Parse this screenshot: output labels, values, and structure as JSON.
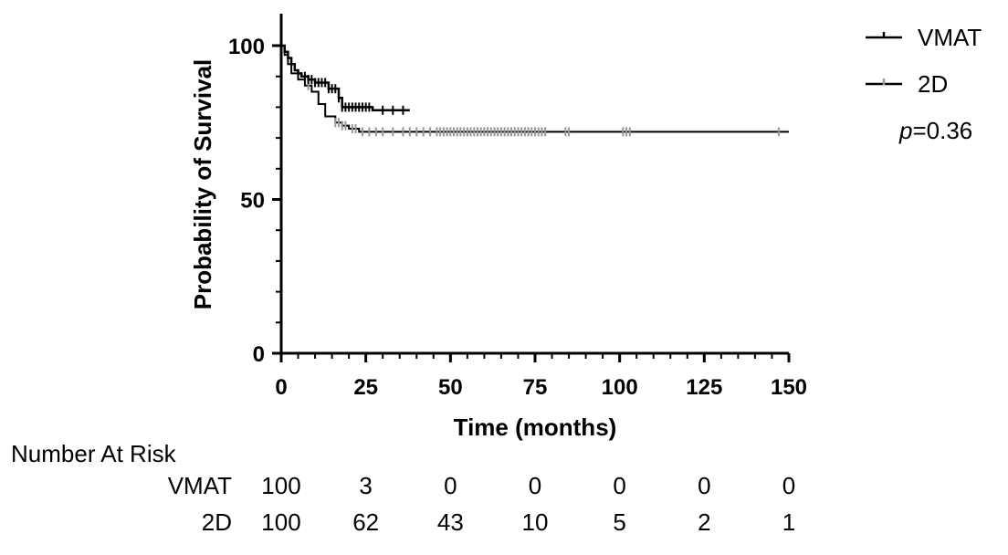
{
  "chart_data": {
    "type": "line",
    "subtype": "kaplan-meier",
    "xlabel": "Time (months)",
    "ylabel": "Probability of Survival",
    "xlim": [
      0,
      150
    ],
    "ylim": [
      0,
      100
    ],
    "x_ticks": [
      "0",
      "25",
      "50",
      "75",
      "100",
      "125",
      "150"
    ],
    "y_ticks": [
      "0",
      "50",
      "100"
    ],
    "grid": false,
    "legend_position": "top-right",
    "series": [
      {
        "name": "VMAT",
        "color": "#000000",
        "censor_color": "#000000",
        "steps": [
          [
            0,
            100
          ],
          [
            1,
            98
          ],
          [
            2,
            96
          ],
          [
            3,
            94
          ],
          [
            4,
            92
          ],
          [
            5,
            91
          ],
          [
            6,
            90
          ],
          [
            8,
            89
          ],
          [
            10,
            88
          ],
          [
            14,
            86
          ],
          [
            17,
            83
          ],
          [
            18,
            80
          ],
          [
            25,
            80
          ],
          [
            27,
            79
          ],
          [
            38,
            79
          ]
        ],
        "censored": [
          7,
          8,
          9,
          10,
          11,
          12,
          13,
          14,
          15,
          16,
          17,
          18,
          19,
          20,
          21,
          22,
          23,
          24,
          25,
          26,
          30,
          33,
          36
        ]
      },
      {
        "name": "2D",
        "color": "#000000",
        "censor_color": "#999999",
        "steps": [
          [
            0,
            100
          ],
          [
            1,
            97
          ],
          [
            2,
            94
          ],
          [
            3,
            91
          ],
          [
            5,
            89
          ],
          [
            7,
            87
          ],
          [
            9,
            85
          ],
          [
            11,
            81
          ],
          [
            13,
            77
          ],
          [
            16,
            75
          ],
          [
            18,
            74
          ],
          [
            20,
            73
          ],
          [
            23,
            72
          ],
          [
            150,
            72
          ]
        ],
        "censored": [
          8,
          16,
          17,
          18,
          19,
          21,
          22,
          24,
          26,
          28,
          30,
          33,
          36,
          38,
          40,
          42,
          44,
          46,
          47,
          48,
          49,
          50,
          51,
          52,
          53,
          54,
          55,
          56,
          57,
          58,
          59,
          60,
          61,
          62,
          63,
          64,
          65,
          66,
          67,
          68,
          69,
          70,
          71,
          72,
          73,
          74,
          75,
          76,
          77,
          78,
          84,
          85,
          101,
          102,
          103,
          147
        ]
      }
    ],
    "annotation": "p=0.36",
    "number_at_risk": {
      "title": "Number At Risk",
      "rows": [
        {
          "label": "VMAT",
          "values": [
            "100",
            "3",
            "0",
            "0",
            "0",
            "0",
            "0"
          ]
        },
        {
          "label": "2D",
          "values": [
            "100",
            "62",
            "43",
            "10",
            "5",
            "2",
            "1"
          ]
        }
      ]
    }
  },
  "annotation": {
    "p_symbol": "p",
    "p_value": "=0.36"
  }
}
